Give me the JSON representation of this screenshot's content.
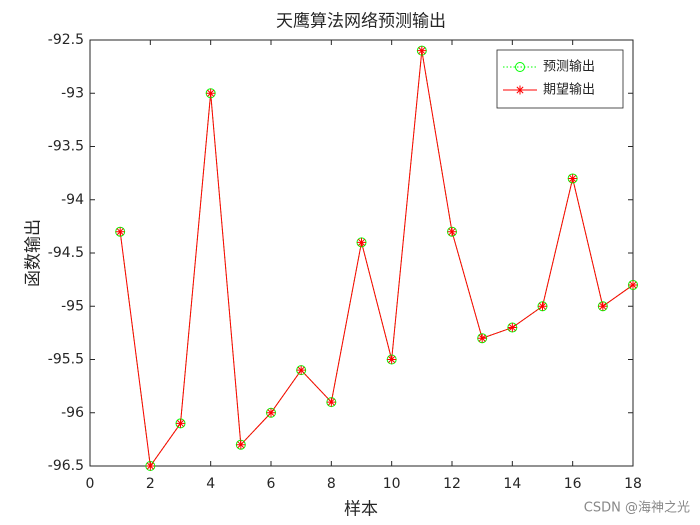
{
  "chart_data": {
    "type": "line",
    "title": "天鹰算法网络预测输出",
    "x_label": "样本",
    "y_label": "函数输出",
    "x": [
      1,
      2,
      3,
      4,
      5,
      6,
      7,
      8,
      9,
      10,
      11,
      12,
      13,
      14,
      15,
      16,
      17,
      18
    ],
    "series": [
      {
        "name": "预测输出",
        "color": "#00ff00",
        "marker": "circle",
        "line_style": "dotted",
        "values": [
          -94.3,
          -96.5,
          -96.1,
          -93.0,
          -96.3,
          -96.0,
          -95.6,
          -95.9,
          -94.4,
          -95.5,
          -92.6,
          -94.3,
          -95.3,
          -95.2,
          -95.0,
          -93.8,
          -95.0,
          -94.8
        ]
      },
      {
        "name": "期望输出",
        "color": "#ff0000",
        "marker": "star",
        "line_style": "solid",
        "values": [
          -94.3,
          -96.5,
          -96.1,
          -93.0,
          -96.3,
          -96.0,
          -95.6,
          -95.9,
          -94.4,
          -95.5,
          -92.6,
          -94.3,
          -95.3,
          -95.2,
          -95.0,
          -93.8,
          -95.0,
          -94.8
        ]
      }
    ],
    "xlim": [
      0,
      18
    ],
    "xticks": [
      0,
      2,
      4,
      6,
      8,
      10,
      12,
      14,
      16,
      18
    ],
    "ylim": [
      -96.5,
      -92.5
    ],
    "yticks": [
      -96.5,
      -96,
      -95.5,
      -95,
      -94.5,
      -94,
      -93.5,
      -93,
      -92.5
    ],
    "grid": false,
    "legend_position": "northeast",
    "watermark": "CSDN @海神之光"
  }
}
